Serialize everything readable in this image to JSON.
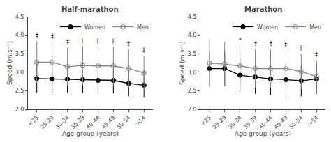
{
  "chart_data": [
    {
      "type": "line",
      "title": "Half-marathon",
      "xlabel": "Age group (years)",
      "ylabel": "Speed (m.s⁻¹)",
      "categories": [
        "<25",
        "25-29",
        "30-34",
        "35-39",
        "40-44",
        "45-49",
        "50-54",
        ">54"
      ],
      "ylim": [
        2.0,
        4.5
      ],
      "yticks": [
        {
          "value": 2.0,
          "label": "2.0"
        },
        {
          "value": 2.5,
          "label": "2.5"
        },
        {
          "value": 3.0,
          "label": "3.0"
        },
        {
          "value": 3.5,
          "label": "3.5"
        },
        {
          "value": 4.0,
          "label": "4.0"
        },
        {
          "value": 4.5,
          "label": "4.5"
        }
      ],
      "grid": false,
      "legend": "upper right",
      "series": [
        {
          "name": "Women",
          "color": "#000000",
          "marker": "circle",
          "values": [
            2.83,
            2.82,
            2.81,
            2.8,
            2.78,
            2.78,
            2.7,
            2.65
          ],
          "err_lo": [
            0.38,
            0.37,
            0.36,
            0.36,
            0.36,
            0.35,
            0.35,
            0.33
          ],
          "err_hi": [
            0.38,
            0.37,
            0.36,
            0.36,
            0.36,
            0.35,
            0.35,
            0.33
          ]
        },
        {
          "name": "Men",
          "color": "#888888",
          "marker": "circle-open",
          "values": [
            3.27,
            3.27,
            3.15,
            3.18,
            3.17,
            3.17,
            3.1,
            2.98
          ],
          "err_lo": [
            0.57,
            0.55,
            0.52,
            0.52,
            0.52,
            0.52,
            0.52,
            0.47
          ],
          "err_hi": [
            0.57,
            0.55,
            0.52,
            0.52,
            0.52,
            0.52,
            0.52,
            0.47
          ]
        }
      ],
      "annotations": [
        {
          "x": "<25",
          "series": "Men",
          "text": "‡"
        },
        {
          "x": "25-29",
          "series": "Men",
          "text": "‡"
        },
        {
          "x": "30-34",
          "series": "Men",
          "text": "‡"
        },
        {
          "x": "35-39",
          "series": "Men",
          "text": "‡"
        },
        {
          "x": "40-44",
          "series": "Men",
          "text": "‡"
        },
        {
          "x": "45-49",
          "series": "Men",
          "text": "‡"
        },
        {
          "x": "50-54",
          "series": "Men",
          "text": "‡"
        },
        {
          "x": ">54",
          "series": "Men",
          "text": "‡"
        }
      ]
    },
    {
      "type": "line",
      "title": "Marathon",
      "xlabel": "Age group (years)",
      "ylabel": "Speed (m.s⁻¹)",
      "categories": [
        "<25",
        "25-29",
        "30-34",
        "35-39",
        "40-44",
        "45-49",
        "50-54",
        ">54"
      ],
      "ylim": [
        2.0,
        4.5
      ],
      "yticks": [
        {
          "value": 2.0,
          "label": "2.0"
        },
        {
          "value": 2.5,
          "label": "2.5"
        },
        {
          "value": 3.0,
          "label": "3.0"
        },
        {
          "value": 3.5,
          "label": "3.5"
        },
        {
          "value": 4.0,
          "label": "4.0"
        },
        {
          "value": 4.5,
          "label": "4.5"
        }
      ],
      "grid": false,
      "legend": "upper right",
      "series": [
        {
          "name": "Women",
          "color": "#000000",
          "marker": "circle",
          "values": [
            3.1,
            3.1,
            2.92,
            2.87,
            2.82,
            2.8,
            2.77,
            2.82
          ],
          "err_lo": [
            0.48,
            0.47,
            0.46,
            0.45,
            0.43,
            0.43,
            0.42,
            0.4
          ],
          "err_hi": [
            0.48,
            0.47,
            0.46,
            0.45,
            0.43,
            0.43,
            0.42,
            0.4
          ]
        },
        {
          "name": "Men",
          "color": "#888888",
          "marker": "circle-open",
          "values": [
            3.25,
            3.22,
            3.17,
            3.1,
            3.1,
            3.1,
            3.02,
            2.88
          ],
          "err_lo": [
            0.65,
            0.6,
            0.55,
            0.52,
            0.52,
            0.5,
            0.48,
            0.45
          ],
          "err_hi": [
            0.65,
            0.6,
            0.55,
            0.52,
            0.52,
            0.5,
            0.48,
            0.45
          ]
        }
      ],
      "annotations": [
        {
          "x": "30-34",
          "series": "Men",
          "text": "*"
        },
        {
          "x": "35-39",
          "series": "Men",
          "text": "‡"
        },
        {
          "x": "40-44",
          "series": "Men",
          "text": "‡"
        },
        {
          "x": "45-49",
          "series": "Men",
          "text": "‡"
        },
        {
          "x": "50-54",
          "series": "Men",
          "text": "‡"
        },
        {
          "x": ">54",
          "series": "Men",
          "text": "‡"
        }
      ]
    }
  ]
}
